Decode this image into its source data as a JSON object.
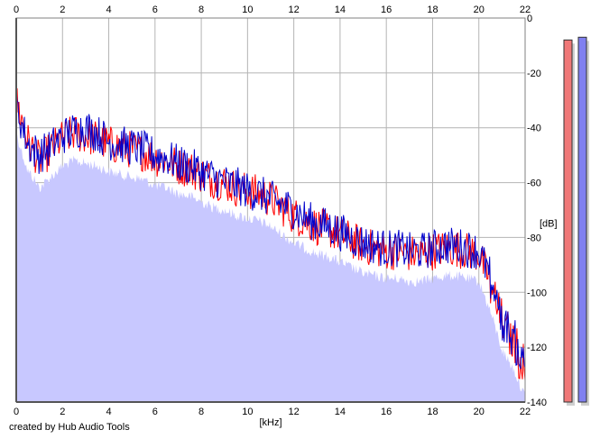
{
  "credit": "created by Hub Audio Tools",
  "chart_data": {
    "type": "area",
    "xlabel": "[kHz]",
    "ylabel": "[dB]",
    "xlim": [
      0,
      22
    ],
    "ylim": [
      -140,
      0
    ],
    "x_ticks": [
      0,
      2,
      4,
      6,
      8,
      10,
      12,
      14,
      16,
      18,
      20,
      22
    ],
    "y_ticks": [
      0,
      -20,
      -40,
      -60,
      -80,
      -100,
      -120,
      -140
    ],
    "grid": true,
    "colors": {
      "fill": "#c8c8ff",
      "left_channel": "#ff0000",
      "right_channel": "#0000cc",
      "left_meter": "#f07878",
      "right_meter": "#8080f0",
      "grid": "#b4b4b4",
      "axis": "#808080"
    },
    "series": [
      {
        "x": [
          0,
          0.5,
          1,
          1.5,
          2,
          2.5,
          3,
          3.5,
          4,
          4.5,
          5,
          5.5,
          6,
          6.5,
          7,
          7.5,
          8,
          8.5,
          9,
          9.5,
          10,
          10.5,
          11,
          11.5,
          12,
          12.5,
          13,
          13.5,
          14,
          14.5,
          15,
          15.5,
          16,
          16.5,
          17,
          17.5,
          18,
          18.5,
          19,
          19.5,
          20,
          20.5,
          21,
          21.5,
          22
        ],
        "y": [
          -30,
          -45,
          -52,
          -48,
          -44,
          -42,
          -43,
          -44,
          -46,
          -47,
          -48,
          -49,
          -51,
          -52,
          -54,
          -55,
          -57,
          -59,
          -60,
          -62,
          -63,
          -64,
          -66,
          -69,
          -72,
          -74,
          -76,
          -77,
          -79,
          -81,
          -83,
          -84,
          -85,
          -85,
          -86,
          -86,
          -85,
          -84,
          -84,
          -85,
          -86,
          -97,
          -111,
          -118,
          -128
        ]
      },
      {
        "x": [
          0,
          0.5,
          1,
          1.5,
          2,
          2.5,
          3,
          3.5,
          4,
          4.5,
          5,
          5.5,
          6,
          6.5,
          7,
          7.5,
          8,
          8.5,
          9,
          9.5,
          10,
          10.5,
          11,
          11.5,
          12,
          12.5,
          13,
          13.5,
          14,
          14.5,
          15,
          15.5,
          16,
          16.5,
          17,
          17.5,
          18,
          18.5,
          19,
          19.5,
          20,
          20.5,
          21,
          21.5,
          22
        ],
        "y": [
          -32,
          -46,
          -50,
          -47,
          -43,
          -41,
          -40,
          -42,
          -45,
          -46,
          -47,
          -48,
          -50,
          -51,
          -53,
          -54,
          -56,
          -58,
          -60,
          -61,
          -63,
          -64,
          -66,
          -68,
          -70,
          -73,
          -75,
          -76,
          -78,
          -80,
          -82,
          -83,
          -84,
          -84,
          -85,
          -85,
          -84,
          -83,
          -83,
          -84,
          -85,
          -95,
          -110,
          -117,
          -127
        ]
      }
    ],
    "meters": {
      "left": -8,
      "right": -7
    }
  }
}
